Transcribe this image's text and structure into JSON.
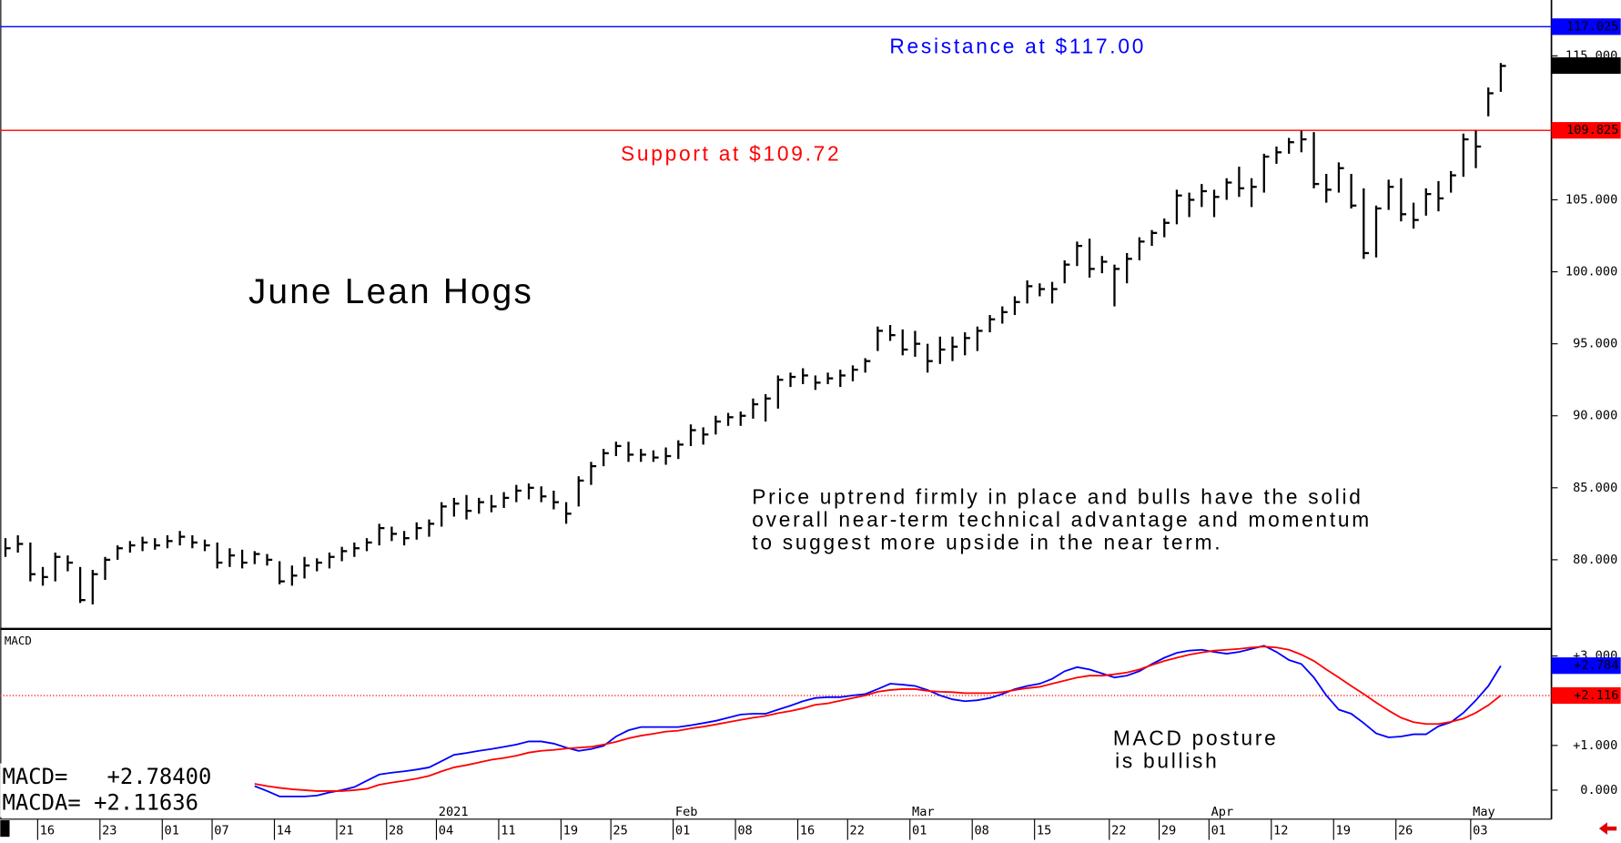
{
  "chart_data": [
    {
      "type": "ohlc",
      "title": "June Lean Hogs",
      "color": "#000000",
      "annotations": [
        {
          "text": "Resistance at $117.00",
          "color": "#0000ff"
        },
        {
          "text": "Support at $109.72",
          "color": "#ff0000"
        },
        {
          "text": "Price uptrend firmly in place and bulls have the solid",
          "color": "#000000"
        },
        {
          "text": "overall near-term technical advantage and momentum",
          "color": "#000000"
        },
        {
          "text": "to suggest more upside in the near term.",
          "color": "#000000"
        }
      ],
      "categories": [
        null,
        null,
        null,
        "16",
        null,
        null,
        null,
        null,
        "23",
        null,
        null,
        null,
        null,
        "01",
        null,
        null,
        null,
        "07",
        null,
        null,
        null,
        null,
        "14",
        null,
        null,
        null,
        null,
        "21",
        null,
        null,
        null,
        "28",
        null,
        null,
        null,
        "04",
        null,
        null,
        null,
        null,
        "11",
        null,
        null,
        null,
        null,
        "19",
        null,
        null,
        null,
        "25",
        null,
        null,
        null,
        null,
        "01",
        null,
        null,
        null,
        null,
        "08",
        null,
        null,
        null,
        null,
        "16",
        null,
        null,
        null,
        "22",
        null,
        null,
        null,
        null,
        "01",
        null,
        null,
        null,
        null,
        "08",
        null,
        null,
        null,
        null,
        "15",
        null,
        null,
        null,
        null,
        null,
        "22",
        null,
        null,
        null,
        "29",
        null,
        null,
        null,
        "01",
        null,
        null,
        null,
        null,
        "12",
        null,
        null,
        null,
        null,
        "19",
        null,
        null,
        null,
        null,
        "26",
        null,
        null,
        null,
        null,
        null,
        "03",
        null,
        null
      ],
      "months": [
        null,
        null,
        null,
        null,
        null,
        null,
        null,
        null,
        null,
        null,
        null,
        null,
        null,
        null,
        null,
        null,
        null,
        null,
        null,
        null,
        null,
        null,
        null,
        null,
        null,
        null,
        null,
        null,
        null,
        null,
        null,
        null,
        null,
        null,
        null,
        "2021",
        null,
        null,
        null,
        null,
        null,
        null,
        null,
        null,
        null,
        null,
        null,
        null,
        null,
        null,
        null,
        null,
        null,
        null,
        "Feb",
        null,
        null,
        null,
        null,
        null,
        null,
        null,
        null,
        null,
        null,
        null,
        null,
        null,
        null,
        null,
        null,
        null,
        null,
        "Mar",
        null,
        null,
        null,
        null,
        null,
        null,
        null,
        null,
        null,
        null,
        null,
        null,
        null,
        null,
        null,
        null,
        null,
        null,
        null,
        null,
        null,
        null,
        null,
        "Apr",
        null,
        null,
        null,
        null,
        null,
        null,
        null,
        null,
        null,
        null,
        null,
        null,
        null,
        null,
        null,
        null,
        null,
        null,
        null,
        null,
        "May",
        null,
        null
      ],
      "high": [
        81.5,
        81.7,
        81.2,
        79.5,
        80.5,
        80.3,
        79.5,
        79.3,
        80.2,
        81,
        81.3,
        81.6,
        81.5,
        81.7,
        82,
        81.7,
        81.4,
        81.2,
        80.8,
        80.7,
        80.6,
        80.4,
        79.9,
        79.6,
        80.2,
        80.1,
        80.5,
        80.9,
        81.2,
        81.5,
        82.5,
        82.3,
        82,
        82.6,
        82.8,
        84,
        84.3,
        84.5,
        84.3,
        84.5,
        84.7,
        85.2,
        85.3,
        85.1,
        84.8,
        84,
        85.8,
        86.8,
        87.7,
        88.2,
        88.2,
        87.7,
        87.6,
        87.8,
        88.3,
        89.4,
        89.2,
        90,
        90.2,
        90.3,
        91.2,
        91.5,
        92.8,
        93,
        93.3,
        92.8,
        93,
        93.2,
        93.5,
        94,
        96.2,
        96.3,
        96,
        95.9,
        95,
        95.5,
        95.5,
        95.8,
        96.2,
        97,
        97.6,
        98.3,
        99.4,
        99.2,
        99.3,
        100.8,
        102.1,
        102.3,
        101.1,
        100.5,
        101.3,
        102.4,
        102.9,
        103.7,
        105.7,
        105.5,
        106.1,
        105.7,
        106.5,
        107.3,
        106.5,
        108.2,
        108.7,
        109.3,
        109.8,
        109.7,
        106.8,
        107.6,
        106.8,
        105.8,
        104.6,
        106.4,
        106.5,
        104.8,
        105.8,
        106.3,
        107,
        109.6,
        109.8,
        112.8,
        114.5
      ],
      "low": [
        80.2,
        80.5,
        78.5,
        78.2,
        78.5,
        79.2,
        77,
        76.9,
        78.6,
        80,
        80.5,
        80.6,
        80.7,
        80.8,
        81,
        80.8,
        80.6,
        79.4,
        79.5,
        79.4,
        79.7,
        79.6,
        78.3,
        78.2,
        78.7,
        79.2,
        79.4,
        79.9,
        80.2,
        80.6,
        81,
        81.3,
        81,
        81.4,
        81.6,
        82.3,
        83,
        82.8,
        83.2,
        83.3,
        83.6,
        84,
        84.2,
        84,
        83.5,
        82.5,
        83.7,
        85.2,
        86.5,
        87.2,
        86.8,
        86.8,
        86.8,
        86.6,
        87,
        87.9,
        88,
        88.7,
        89.3,
        89.3,
        89.8,
        89.6,
        90.5,
        92,
        92.2,
        91.8,
        92.2,
        92,
        92.4,
        93,
        94.5,
        95.2,
        94.2,
        94.1,
        93,
        93.6,
        93.8,
        94.2,
        94.5,
        95.8,
        96.4,
        97,
        97.8,
        98.3,
        97.8,
        99.2,
        100.4,
        99.6,
        99.9,
        97.6,
        99.2,
        100.8,
        101.8,
        102.4,
        103.3,
        103.8,
        104.5,
        103.8,
        105,
        105.2,
        104.5,
        105.5,
        107.5,
        108.2,
        108.3,
        105.8,
        104.8,
        105.5,
        104.4,
        100.9,
        101,
        104.3,
        103.5,
        103,
        103.9,
        104.2,
        105.5,
        106.6,
        107.2,
        110.8,
        112.5
      ],
      "close": [
        80.8,
        81.1,
        79,
        78.8,
        80.2,
        79.8,
        77.2,
        79,
        80,
        80.8,
        81,
        81.2,
        81,
        81.3,
        81.6,
        81.2,
        81,
        79.8,
        80.3,
        79.8,
        80.4,
        80,
        78.5,
        78.9,
        79.6,
        79.8,
        80.2,
        80.6,
        80.8,
        81.2,
        82.2,
        81.8,
        81.5,
        82.2,
        82.5,
        83.7,
        83.9,
        83.4,
        84,
        83.7,
        84.3,
        84.8,
        85,
        84.4,
        84,
        83.2,
        85.5,
        86.5,
        87.4,
        87.9,
        87.3,
        87.3,
        87.1,
        87.2,
        88,
        89,
        88.7,
        89.6,
        89.9,
        90,
        90.8,
        91.2,
        92.5,
        92.7,
        92.8,
        92.3,
        92.6,
        92.8,
        93.2,
        93.8,
        95.9,
        95.6,
        94.6,
        95,
        93.8,
        94.6,
        94.8,
        95.4,
        95.9,
        96.7,
        97.2,
        97.9,
        99,
        98.8,
        98.8,
        100.5,
        101.8,
        100.2,
        100.7,
        100.2,
        100.9,
        102.1,
        102.7,
        103.4,
        105.3,
        105,
        105.6,
        105.2,
        106.2,
        105.8,
        105.9,
        108,
        108.3,
        109,
        109.2,
        106.1,
        105.7,
        107.2,
        104.6,
        101.3,
        104.4,
        105.9,
        104,
        103.6,
        105.4,
        105.1,
        106.7,
        109.2,
        108.7,
        112.4,
        114.3
      ],
      "ylim": [
        75.2,
        117.8
      ],
      "yticks": [
        {
          "value": 80,
          "label": "80.000"
        },
        {
          "value": 85,
          "label": "85.000"
        },
        {
          "value": 90,
          "label": "90.000"
        },
        {
          "value": 95,
          "label": "95.000"
        },
        {
          "value": 100,
          "label": "100.000"
        },
        {
          "value": 105,
          "label": "105.000"
        },
        {
          "value": 115,
          "label": "115.000"
        }
      ],
      "levels": [
        {
          "value": 117.025,
          "label": "117.025",
          "color": "#0000ff",
          "line": true
        },
        {
          "value": 114.325,
          "label": "114.325",
          "color": "#000000",
          "line": false
        },
        {
          "value": 109.825,
          "label": "109.825",
          "color": "#ff0000",
          "line": true
        }
      ]
    },
    {
      "type": "line",
      "title": "MACD",
      "annotations": [
        {
          "text": "MACD posture",
          "color": "#000000"
        },
        {
          "text": "is bullish",
          "color": "#000000"
        }
      ],
      "readout": [
        "MACD=   +2.78400",
        "MACDA= +2.11636"
      ],
      "series": [
        {
          "color": "#0000ff",
          "values": [
            null,
            null,
            null,
            null,
            null,
            null,
            null,
            null,
            null,
            null,
            null,
            null,
            null,
            null,
            null,
            null,
            null,
            null,
            null,
            null,
            0.09,
            -0.02,
            -0.14,
            -0.14,
            -0.14,
            -0.12,
            -0.05,
            0,
            0.07,
            0.21,
            0.35,
            0.39,
            0.42,
            0.46,
            0.51,
            0.65,
            0.79,
            0.83,
            0.88,
            0.92,
            0.97,
            1.02,
            1.09,
            1.09,
            1.04,
            0.95,
            0.88,
            0.92,
            0.99,
            1.2,
            1.34,
            1.41,
            1.41,
            1.41,
            1.41,
            1.45,
            1.5,
            1.55,
            1.62,
            1.69,
            1.71,
            1.71,
            1.8,
            1.89,
            1.99,
            2.06,
            2.08,
            2.08,
            2.12,
            2.15,
            2.26,
            2.38,
            2.36,
            2.33,
            2.24,
            2.12,
            2.03,
            1.99,
            2.01,
            2.06,
            2.15,
            2.26,
            2.33,
            2.38,
            2.49,
            2.66,
            2.75,
            2.7,
            2.61,
            2.52,
            2.56,
            2.66,
            2.82,
            2.96,
            3.07,
            3.12,
            3.14,
            3.09,
            3.05,
            3.09,
            3.16,
            3.23,
            3.09,
            2.91,
            2.82,
            2.52,
            2.12,
            1.8,
            1.71,
            1.5,
            1.27,
            1.18,
            1.2,
            1.25,
            1.25,
            1.43,
            1.52,
            1.73,
            2.01,
            2.33,
            2.78
          ]
        },
        {
          "color": "#ff0000",
          "values": [
            null,
            null,
            null,
            null,
            null,
            null,
            null,
            null,
            null,
            null,
            null,
            null,
            null,
            null,
            null,
            null,
            null,
            null,
            null,
            null,
            0.14,
            0.09,
            0.05,
            0.02,
            0,
            -0.02,
            -0.02,
            -0.02,
            0,
            0.03,
            0.12,
            0.17,
            0.21,
            0.26,
            0.32,
            0.42,
            0.51,
            0.56,
            0.62,
            0.68,
            0.72,
            0.77,
            0.84,
            0.88,
            0.9,
            0.93,
            0.95,
            0.97,
            1.02,
            1.08,
            1.16,
            1.22,
            1.26,
            1.31,
            1.33,
            1.38,
            1.42,
            1.47,
            1.52,
            1.57,
            1.62,
            1.66,
            1.72,
            1.77,
            1.83,
            1.91,
            1.94,
            2,
            2.06,
            2.12,
            2.2,
            2.24,
            2.26,
            2.26,
            2.22,
            2.2,
            2.19,
            2.17,
            2.17,
            2.17,
            2.19,
            2.24,
            2.28,
            2.31,
            2.38,
            2.45,
            2.52,
            2.56,
            2.56,
            2.59,
            2.63,
            2.7,
            2.8,
            2.89,
            2.96,
            3.03,
            3.08,
            3.12,
            3.14,
            3.16,
            3.19,
            3.21,
            3.19,
            3.14,
            3.03,
            2.89,
            2.7,
            2.52,
            2.33,
            2.15,
            1.96,
            1.78,
            1.62,
            1.52,
            1.48,
            1.48,
            1.53,
            1.6,
            1.73,
            1.9,
            2.12
          ]
        }
      ],
      "ylim": [
        -0.65,
        3.56
      ],
      "yticks": [
        {
          "value": 0,
          "label": "0.000"
        },
        {
          "value": 1,
          "label": "+1.000"
        },
        {
          "value": 3,
          "label": "+3.000"
        }
      ],
      "levels": [
        {
          "value": 2.784,
          "label": "+2.784",
          "color": "#0000ff",
          "line": false
        },
        {
          "value": 2.116,
          "label": "+2.116",
          "color": "#ff0000",
          "line": true
        }
      ]
    }
  ]
}
